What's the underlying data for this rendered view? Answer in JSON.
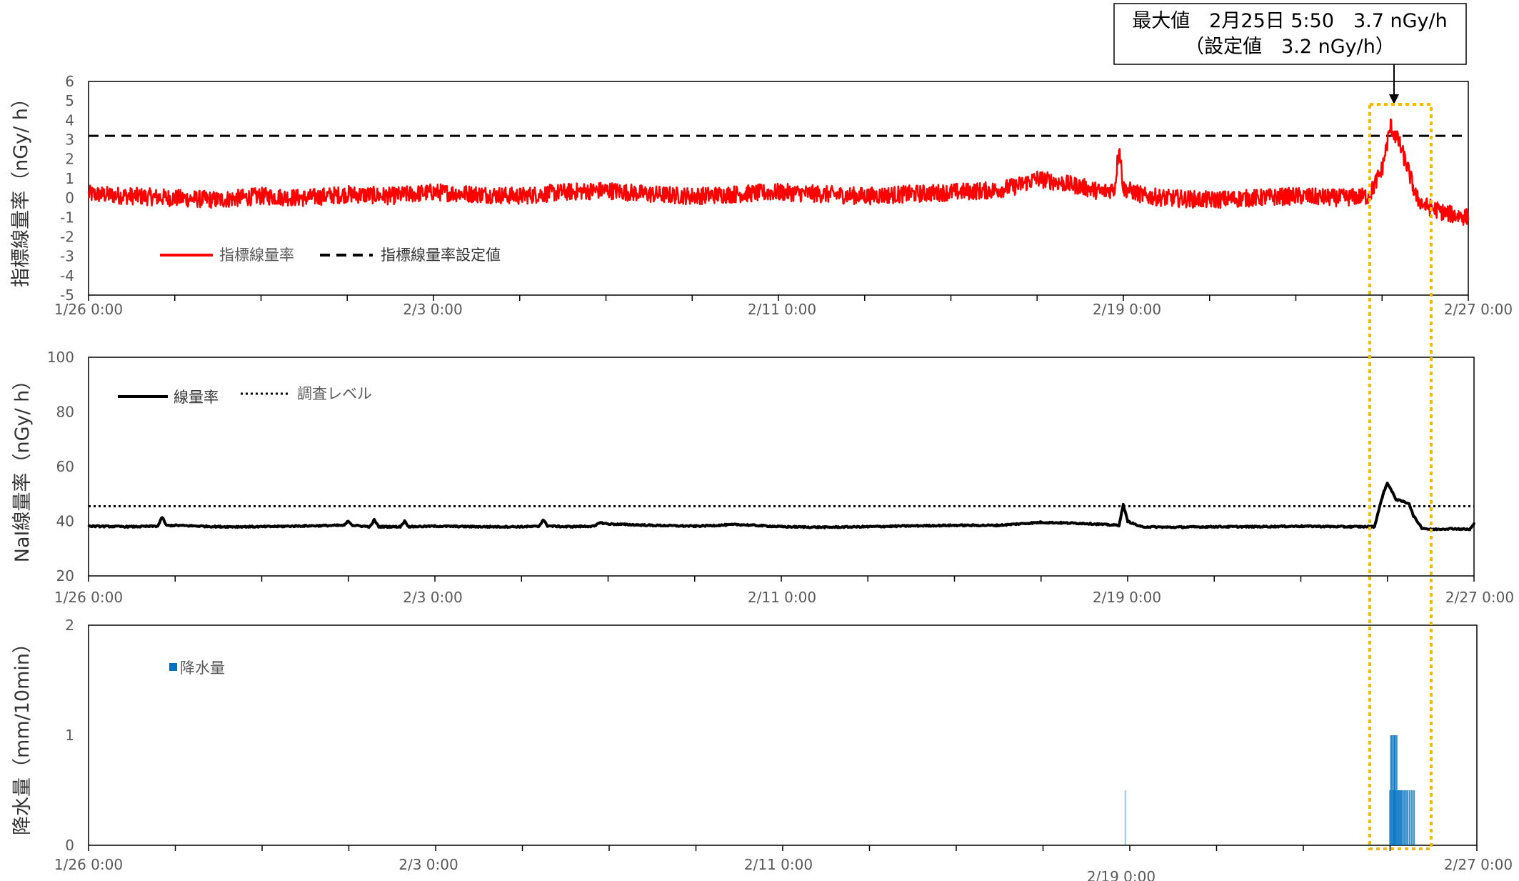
{
  "annotation": {
    "line1": "最大値　2月25日 5:50　3.7 nGy/h",
    "line2": "（設定値　3.2 nGy/h）"
  },
  "colors": {
    "index_rate": "#ff0000",
    "setpoint": "#000000",
    "nai_rate": "#000000",
    "investigation": "#000000",
    "precipitation": "#0070c0",
    "highlight": "#f5b800"
  },
  "chart_data": [
    {
      "type": "line",
      "ylabel": "指標線量率（nGy/ h）",
      "ylim": [
        -5,
        6
      ],
      "yticks": [
        "-5",
        "-4",
        "-3",
        "-2",
        "-1",
        "0",
        "1",
        "2",
        "3",
        "4",
        "5",
        "6"
      ],
      "xticks": [
        "1/26 0:00",
        "2/3 0:00",
        "2/11 0:00",
        "2/19 0:00",
        "2/27 0:00"
      ],
      "xlim_days": [
        0,
        32
      ],
      "legend": {
        "placement": "bottom-left",
        "entries": [
          "指標線量率",
          "指標線量率設定値"
        ]
      },
      "setpoint": 3.2,
      "series": [
        {
          "name": "指標線量率",
          "style": "solid-red-noisy",
          "points": [
            [
              0,
              0.2
            ],
            [
              1,
              0.1
            ],
            [
              2,
              0.0
            ],
            [
              3,
              -0.1
            ],
            [
              4,
              0.1
            ],
            [
              5,
              0.0
            ],
            [
              6,
              0.2
            ],
            [
              7,
              0.1
            ],
            [
              8,
              0.3
            ],
            [
              9,
              0.2
            ],
            [
              10,
              0.1
            ],
            [
              11,
              0.3
            ],
            [
              12,
              0.4
            ],
            [
              13,
              0.2
            ],
            [
              14,
              0.1
            ],
            [
              15,
              0.2
            ],
            [
              16,
              0.3
            ],
            [
              17,
              0.2
            ],
            [
              18,
              0.1
            ],
            [
              19,
              0.2
            ],
            [
              20,
              0.3
            ],
            [
              21,
              0.4
            ],
            [
              21.5,
              0.6
            ],
            [
              22,
              1.0
            ],
            [
              22.5,
              0.8
            ],
            [
              23,
              0.6
            ],
            [
              23.5,
              0.3
            ],
            [
              23.8,
              0.5
            ],
            [
              23.9,
              2.7
            ],
            [
              24.0,
              0.5
            ],
            [
              24.5,
              0.1
            ],
            [
              25,
              0.0
            ],
            [
              26,
              -0.1
            ],
            [
              27,
              0.0
            ],
            [
              28,
              0.1
            ],
            [
              29,
              0.0
            ],
            [
              29.7,
              0.1
            ],
            [
              30.0,
              1.5
            ],
            [
              30.2,
              3.7
            ],
            [
              30.4,
              2.8
            ],
            [
              30.6,
              1.5
            ],
            [
              30.8,
              0.0
            ],
            [
              31,
              -0.4
            ],
            [
              31.5,
              -0.8
            ],
            [
              32,
              -1.0
            ]
          ]
        }
      ]
    },
    {
      "type": "line",
      "ylabel": "NaI線量率（nGy/ h）",
      "ylim": [
        20,
        100
      ],
      "yticks": [
        "20",
        "40",
        "60",
        "80",
        "100"
      ],
      "xticks": [
        "1/26 0:00",
        "2/3 0:00",
        "2/11 0:00",
        "2/19 0:00",
        "2/27 0:00"
      ],
      "xlim_days": [
        0,
        32
      ],
      "legend": {
        "placement": "top-left",
        "entries": [
          "線量率",
          "調査レベル"
        ]
      },
      "investigation_level": 45.5,
      "series": [
        {
          "name": "線量率",
          "style": "solid-black",
          "points": [
            [
              0,
              38.2
            ],
            [
              1,
              38.0
            ],
            [
              1.6,
              38.2
            ],
            [
              1.7,
              41.5
            ],
            [
              1.8,
              38.4
            ],
            [
              2,
              38.5
            ],
            [
              3,
              38.0
            ],
            [
              4,
              38.0
            ],
            [
              5,
              38.3
            ],
            [
              5.9,
              38.5
            ],
            [
              6.0,
              40.0
            ],
            [
              6.1,
              38.5
            ],
            [
              6.5,
              38.0
            ],
            [
              6.6,
              40.5
            ],
            [
              6.7,
              38.0
            ],
            [
              7,
              38.0
            ],
            [
              7.2,
              38.0
            ],
            [
              7.3,
              40.0
            ],
            [
              7.4,
              38.0
            ],
            [
              8,
              38.2
            ],
            [
              9,
              38.0
            ],
            [
              10,
              38.0
            ],
            [
              10.4,
              38.1
            ],
            [
              10.5,
              40.5
            ],
            [
              10.6,
              38.3
            ],
            [
              11,
              38.0
            ],
            [
              11.7,
              38.2
            ],
            [
              11.8,
              39.5
            ],
            [
              12,
              39.0
            ],
            [
              13,
              38.5
            ],
            [
              14,
              38.2
            ],
            [
              15,
              38.8
            ],
            [
              16,
              38.0
            ],
            [
              17,
              37.8
            ],
            [
              18,
              38.0
            ],
            [
              19,
              38.3
            ],
            [
              20,
              38.5
            ],
            [
              21,
              38.5
            ],
            [
              22,
              39.6
            ],
            [
              23,
              39.2
            ],
            [
              23.8,
              38.5
            ],
            [
              23.9,
              46.0
            ],
            [
              24.0,
              40.0
            ],
            [
              24.3,
              38.0
            ],
            [
              25,
              37.8
            ],
            [
              26,
              38.0
            ],
            [
              27,
              38.0
            ],
            [
              28,
              38.2
            ],
            [
              29,
              38.0
            ],
            [
              29.7,
              38.0
            ],
            [
              29.9,
              50.0
            ],
            [
              30.0,
              54.0
            ],
            [
              30.2,
              48.0
            ],
            [
              30.5,
              46.5
            ],
            [
              30.6,
              42.0
            ],
            [
              30.8,
              37.5
            ],
            [
              31,
              37.0
            ],
            [
              31.5,
              37.3
            ],
            [
              31.9,
              37.0
            ],
            [
              32,
              39.0
            ]
          ]
        }
      ]
    },
    {
      "type": "bar",
      "ylabel": "降水量（mm/10min）",
      "ylim": [
        0,
        2
      ],
      "yticks": [
        "0",
        "1",
        "2"
      ],
      "xticks": [
        "1/26 0:00",
        "2/3 0:00",
        "2/11 0:00",
        "2/19 0:00",
        "2/27 0:00"
      ],
      "xlim_days": [
        0,
        32
      ],
      "legend": {
        "placement": "top-left",
        "entries": [
          "降水量"
        ]
      },
      "series": [
        {
          "name": "降水量",
          "bars": [
            [
              23.9,
              0.5
            ],
            [
              30.0,
              0.5
            ],
            [
              30.02,
              1.0
            ],
            [
              30.05,
              1.0
            ],
            [
              30.07,
              0.5
            ],
            [
              30.09,
              1.0
            ],
            [
              30.11,
              1.0
            ],
            [
              30.13,
              0.5
            ],
            [
              30.15,
              1.0
            ],
            [
              30.18,
              0.5
            ],
            [
              30.2,
              0.5
            ],
            [
              30.23,
              0.5
            ],
            [
              30.25,
              0.5
            ],
            [
              30.28,
              0.5
            ],
            [
              30.32,
              0.5
            ],
            [
              30.36,
              0.5
            ],
            [
              30.4,
              0.5
            ],
            [
              30.45,
              0.5
            ],
            [
              30.5,
              0.5
            ],
            [
              30.55,
              0.5
            ]
          ]
        }
      ]
    }
  ]
}
